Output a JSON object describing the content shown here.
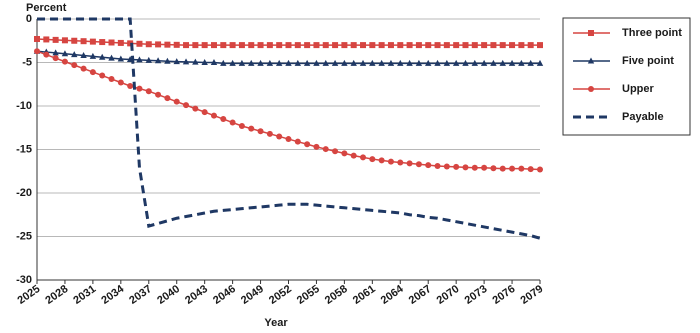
{
  "chart_data": {
    "type": "line",
    "y_axis_label": "Percent",
    "x_axis_label": "Year",
    "x": [
      2025,
      2026,
      2027,
      2028,
      2029,
      2030,
      2031,
      2032,
      2033,
      2034,
      2035,
      2036,
      2037,
      2038,
      2039,
      2040,
      2041,
      2042,
      2043,
      2044,
      2045,
      2046,
      2047,
      2048,
      2049,
      2050,
      2051,
      2052,
      2053,
      2054,
      2055,
      2056,
      2057,
      2058,
      2059,
      2060,
      2061,
      2062,
      2063,
      2064,
      2065,
      2066,
      2067,
      2068,
      2069,
      2070,
      2071,
      2072,
      2073,
      2074,
      2075,
      2076,
      2077,
      2078,
      2079
    ],
    "xlim": [
      2025,
      2079
    ],
    "xticks": [
      2025,
      2028,
      2031,
      2034,
      2037,
      2040,
      2043,
      2046,
      2049,
      2052,
      2055,
      2058,
      2061,
      2064,
      2067,
      2070,
      2073,
      2076,
      2079
    ],
    "ylim": [
      -30,
      0
    ],
    "yticks": [
      0,
      -5,
      -10,
      -15,
      -20,
      -25,
      -30
    ],
    "grid": true,
    "legend": "right",
    "series": [
      {
        "name": "Three point",
        "color": "#d64541",
        "marker": "square",
        "dashed": false,
        "values": [
          -2.3,
          -2.35,
          -2.4,
          -2.45,
          -2.5,
          -2.55,
          -2.6,
          -2.65,
          -2.7,
          -2.75,
          -2.8,
          -2.85,
          -2.9,
          -2.92,
          -2.95,
          -2.97,
          -3,
          -3,
          -3,
          -3,
          -3,
          -3,
          -3,
          -3,
          -3,
          -3,
          -3,
          -3,
          -3,
          -3,
          -3,
          -3,
          -3,
          -3,
          -3,
          -3,
          -3,
          -3,
          -3,
          -3,
          -3,
          -3,
          -3,
          -3,
          -3,
          -3,
          -3,
          -3,
          -3,
          -3,
          -3,
          -3,
          -3,
          -3,
          -3
        ]
      },
      {
        "name": "Five point",
        "color": "#1f3864",
        "marker": "triangle",
        "dashed": false,
        "values": [
          -3.7,
          -3.8,
          -3.9,
          -4,
          -4.1,
          -4.2,
          -4.3,
          -4.4,
          -4.5,
          -4.6,
          -4.65,
          -4.7,
          -4.75,
          -4.8,
          -4.85,
          -4.9,
          -4.93,
          -4.96,
          -5,
          -5,
          -5.1,
          -5.1,
          -5.1,
          -5.1,
          -5.1,
          -5.1,
          -5.1,
          -5.1,
          -5.1,
          -5.1,
          -5.1,
          -5.1,
          -5.1,
          -5.1,
          -5.1,
          -5.1,
          -5.1,
          -5.1,
          -5.1,
          -5.1,
          -5.1,
          -5.1,
          -5.1,
          -5.1,
          -5.1,
          -5.1,
          -5.1,
          -5.1,
          -5.1,
          -5.1,
          -5.1,
          -5.1,
          -5.1,
          -5.1,
          -5.1
        ]
      },
      {
        "name": "Upper",
        "color": "#d64541",
        "marker": "circle",
        "dashed": false,
        "values": [
          -3.7,
          -4.1,
          -4.5,
          -4.9,
          -5.3,
          -5.7,
          -6.1,
          -6.5,
          -6.9,
          -7.3,
          -7.7,
          -8,
          -8.3,
          -8.7,
          -9.1,
          -9.5,
          -9.9,
          -10.3,
          -10.7,
          -11.1,
          -11.5,
          -11.9,
          -12.3,
          -12.6,
          -12.9,
          -13.2,
          -13.5,
          -13.8,
          -14.1,
          -14.4,
          -14.7,
          -14.95,
          -15.2,
          -15.45,
          -15.7,
          -15.9,
          -16.1,
          -16.25,
          -16.4,
          -16.5,
          -16.6,
          -16.7,
          -16.8,
          -16.9,
          -16.95,
          -17,
          -17.05,
          -17.1,
          -17.1,
          -17.15,
          -17.2,
          -17.2,
          -17.2,
          -17.25,
          -17.3
        ]
      },
      {
        "name": "Payable",
        "color": "#1f3864",
        "marker": null,
        "dashed": true,
        "values": [
          0,
          0,
          0,
          0,
          0,
          0,
          0,
          0,
          0,
          0,
          0,
          -17.1,
          -23.8,
          -23.5,
          -23.2,
          -22.9,
          -22.7,
          -22.5,
          -22.3,
          -22.1,
          -22,
          -21.9,
          -21.8,
          -21.7,
          -21.6,
          -21.5,
          -21.4,
          -21.3,
          -21.3,
          -21.3,
          -21.4,
          -21.5,
          -21.6,
          -21.7,
          -21.8,
          -21.9,
          -22,
          -22.1,
          -22.2,
          -22.3,
          -22.5,
          -22.6,
          -22.8,
          -22.9,
          -23.1,
          -23.3,
          -23.5,
          -23.7,
          -23.9,
          -24.1,
          -24.3,
          -24.5,
          -24.7,
          -24.9,
          -25.2
        ]
      }
    ]
  }
}
